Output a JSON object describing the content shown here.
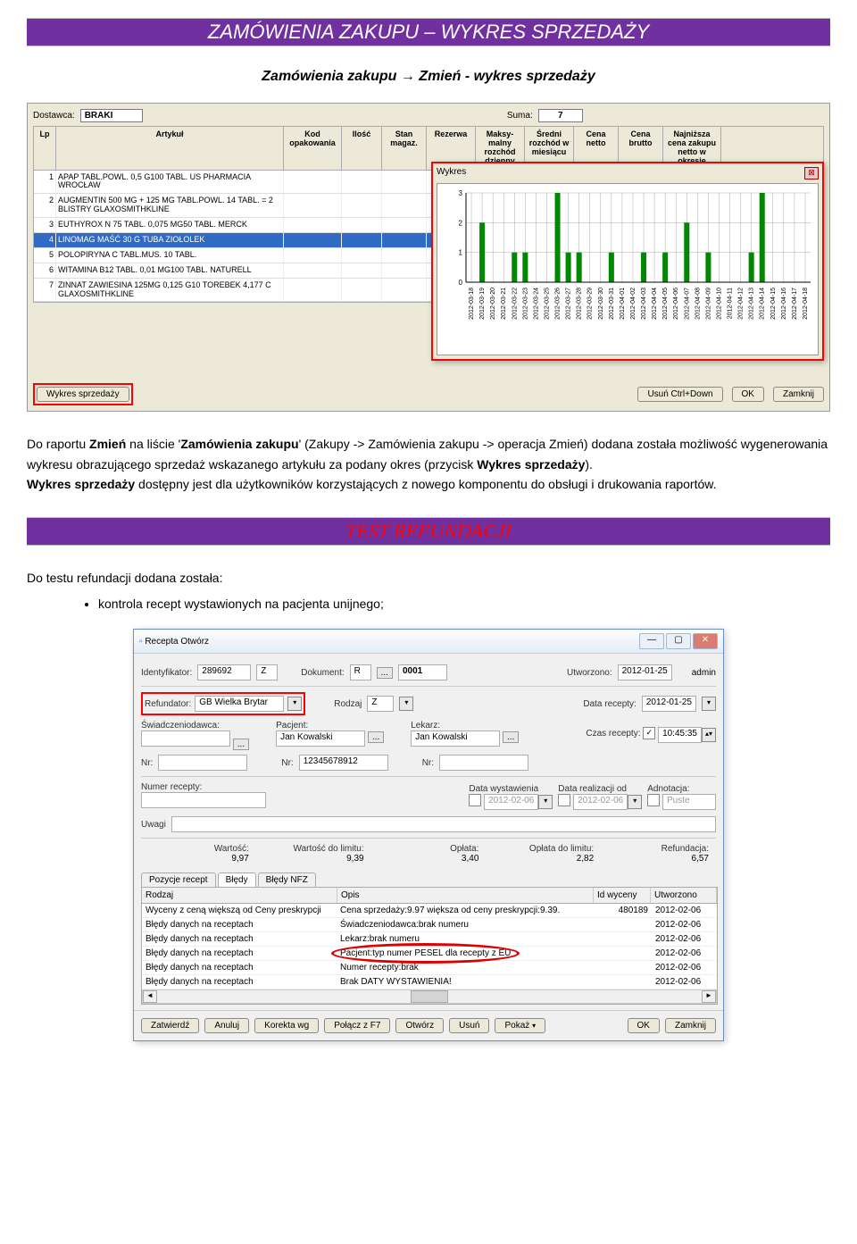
{
  "section1": {
    "title": "ZAMÓWIENIA ZAKUPU – WYKRES SPRZEDAŻY",
    "subtitle": "Zamówienia zakupu → Zmień - wykres sprzedaży"
  },
  "screenshot1": {
    "supplier_label": "Dostawca:",
    "supplier_value": "BRAKI",
    "sum_label": "Suma:",
    "sum_value": "7",
    "headers": {
      "lp": "Lp",
      "artykul": "Artykuł",
      "kod": "Kod opakowania",
      "ilosc": "Ilość",
      "stan": "Stan magaz.",
      "rezerwa": "Rezerwa",
      "maksy": "Maksy-malny rozchód dzienny",
      "sredni": "Średni rozchód w miesiącu",
      "cnetto": "Cena netto",
      "cbrutto": "Cena brutto",
      "najnizsza": "Najniższa cena zakupu netto w okresie"
    },
    "rows": [
      {
        "lp": "1",
        "name": "APAP TABL.POWL. 0,5 G100 TABL. US PHARMACIA WROCŁAW"
      },
      {
        "lp": "2",
        "name": "AUGMENTIN 500 MG + 125 MG TABL.POWL. 14 TABL. = 2 BLISTRY GLAXOSMITHKLINE"
      },
      {
        "lp": "3",
        "name": "EUTHYROX N 75 TABL. 0,075 MG50 TABL. MERCK"
      },
      {
        "lp": "4",
        "name": "LINOMAG MAŚĆ 30 G TUBA ZIOŁOLEK"
      },
      {
        "lp": "5",
        "name": "POLOPIRYNA C TABL.MUS. 10 TABL."
      },
      {
        "lp": "6",
        "name": "WITAMINA B12 TABL. 0,01 MG100 TABL. NATURELL"
      },
      {
        "lp": "7",
        "name": "ZINNAT ZAWIESINA 125MG 0,125 G10 TOREBEK 4,177 C GLAXOSMITHKLINE"
      }
    ],
    "chart": {
      "title": "Wykres",
      "type": "bar",
      "y_ticks": [
        0,
        1,
        2,
        3
      ],
      "ylim": [
        0,
        3
      ],
      "bar_color": "#008800",
      "grid_color": "#aaaaaa",
      "background": "#ffffff",
      "x_labels": [
        "2012-03-18",
        "2012-03-19",
        "2012-03-20",
        "2012-03-21",
        "2012-03-22",
        "2012-03-23",
        "2012-03-24",
        "2012-03-25",
        "2012-03-26",
        "2012-03-27",
        "2012-03-28",
        "2012-03-29",
        "2012-03-30",
        "2012-03-31",
        "2012-04-01",
        "2012-04-02",
        "2012-04-03",
        "2012-04-04",
        "2012-04-05",
        "2012-04-06",
        "2012-04-07",
        "2012-04-08",
        "2012-04-09",
        "2012-04-10",
        "2012-04-11",
        "2012-04-12",
        "2012-04-13",
        "2012-04-14",
        "2012-04-15",
        "2012-04-16",
        "2012-04-17",
        "2012-04-18"
      ],
      "values": [
        0,
        2,
        0,
        0,
        1,
        1,
        0,
        0,
        3,
        1,
        1,
        0,
        0,
        1,
        0,
        0,
        1,
        0,
        1,
        0,
        2,
        0,
        1,
        0,
        0,
        0,
        1,
        3,
        0,
        0,
        0,
        0
      ]
    },
    "buttons": {
      "wykres": "Wykres sprzedaży",
      "usun": "Usuń Ctrl+Down",
      "ok": "OK",
      "zamknij": "Zamknij"
    }
  },
  "paragraph1": {
    "pre": "Do raportu ",
    "b1": "Zmień",
    "mid1": " na liście '",
    "b2": "Zamówienia zakupu",
    "mid2": "' (Zakupy -> Zamówienia zakupu -> operacja Zmień) dodana została możliwość wygenerowania wykresu obrazującego sprzedaż wskazanego artykułu za podany okres (przycisk ",
    "b3": "Wykres sprzedaży",
    "mid3": ").",
    "line2_pre": "",
    "line2_b": "Wykres sprzedaży",
    "line2_post": " dostępny jest dla użytkowników korzystających z nowego komponentu do obsługi i drukowania raportów."
  },
  "section2": {
    "title": "TEST REFUNDACJI"
  },
  "paragraph2": "Do testu refundacji dodana została:",
  "bullet1": "kontrola recept wystawionych na pacjenta unijnego;",
  "screenshot2": {
    "window_title": "Recepta Otwórz",
    "id_label": "Identyfikator:",
    "id_val": "289692",
    "id_z": "Z",
    "dok_label": "Dokument:",
    "dok_r": "R",
    "dok_num": "0001",
    "utw_label": "Utworzono:",
    "utw_val": "2012-01-25",
    "utw_user": "admin",
    "refund_label": "Refundator:",
    "refund_val": "GB Wielka Brytar",
    "rodzaj_label": "Rodzaj",
    "rodzaj_val": "Z",
    "data_rec_label": "Data recepty:",
    "data_rec_val": "2012-01-25",
    "czas_label": "Czas recepty:",
    "czas_checked": true,
    "czas_val": "10:45:35",
    "swiad_label": "Świadczeniodawca:",
    "pacjent_label": "Pacjent:",
    "pacjent_val": "Jan Kowalski",
    "lekarz_label": "Lekarz:",
    "lekarz_val": "Jan Kowalski",
    "nr_label": "Nr:",
    "nr_pacjent": "12345678912",
    "numer_rec_label": "Numer recepty:",
    "data_wyst_label": "Data wystawienia",
    "data_wyst_val": "2012-02-06",
    "data_real_label": "Data realizacji od",
    "data_real_val": "2012-02-06",
    "adnot_label": "Adnotacja:",
    "adnot_val": "Puste",
    "uwagi_label": "Uwagi",
    "wartosc_label": "Wartość:",
    "wartosc_val": "9,97",
    "wart_lim_label": "Wartość do limitu:",
    "wart_lim_val": "9,39",
    "oplata_label": "Opłata:",
    "oplata_val": "3,40",
    "oplata_lim_label": "Opłata do limitu:",
    "oplata_lim_val": "2,82",
    "refund_amt_label": "Refundacja:",
    "refund_amt_val": "6,57",
    "tabs": {
      "pozycje": "Pozycje recept",
      "bledy": "Błędy",
      "bledy_nfz": "Błędy NFZ"
    },
    "table_headers": {
      "rodzaj": "Rodzaj",
      "opis": "Opis",
      "id_wyceny": "Id wyceny",
      "utworzono": "Utworzono"
    },
    "table_rows": [
      {
        "rodzaj": "Wyceny z ceną większą od Ceny preskrypcji",
        "opis": "Cena sprzedaży:9.97 większa od ceny preskrypcji:9.39.",
        "id": "480189",
        "utw": "2012-02-06"
      },
      {
        "rodzaj": "Błędy danych na receptach",
        "opis": "Świadczeniodawca:brak numeru",
        "id": "",
        "utw": "2012-02-06"
      },
      {
        "rodzaj": "Błędy danych na receptach",
        "opis": "Lekarz:brak numeru",
        "id": "",
        "utw": "2012-02-06"
      },
      {
        "rodzaj": "Błędy danych na receptach",
        "opis": "Pacjent:typ numer PESEL dla recepty z EU",
        "id": "",
        "utw": "2012-02-06",
        "ellipse": true
      },
      {
        "rodzaj": "Błędy danych na receptach",
        "opis": "Numer recepty:brak",
        "id": "",
        "utw": "2012-02-06"
      },
      {
        "rodzaj": "Błędy danych na receptach",
        "opis": "Brak DATY WYSTAWIENIA!",
        "id": "",
        "utw": "2012-02-06"
      }
    ],
    "footer_buttons": [
      "Zatwierdź",
      "Anuluj",
      "Korekta wg",
      "Połącz z  F7",
      "Otwórz",
      "Usuń",
      "Pokaż",
      "OK",
      "Zamknij"
    ]
  }
}
